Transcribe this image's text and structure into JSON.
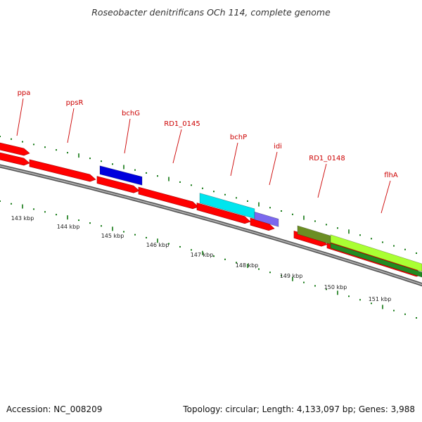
{
  "header": {
    "title": "Roseobacter denitrificans OCh 114, complete genome"
  },
  "footer": {
    "accession": "Accession: NC_008209",
    "summary": "Topology: circular; Length: 4,133,097 bp; Genes: 3,988"
  },
  "colors": {
    "cds": "#ff0000",
    "label": "#cc0000",
    "backbone": "#777777",
    "ticks": "#117711",
    "bchG": "#0000dd",
    "bchP": "#00e5ee",
    "idi": "#7b68ee",
    "RD1_0148": "#6b8e23",
    "flhA_light": "#aaff33",
    "flhA_dark": "#228b22"
  },
  "genome_map": {
    "gene_labels": [
      {
        "name": "ppa"
      },
      {
        "name": "ppsR"
      },
      {
        "name": "bchG"
      },
      {
        "name": "RD1_0145"
      },
      {
        "name": "bchP"
      },
      {
        "name": "idi"
      },
      {
        "name": "RD1_0148"
      },
      {
        "name": "flhA"
      }
    ],
    "kbp_labels": [
      "143 kbp",
      "144 kbp",
      "145 kbp",
      "146 kbp",
      "147 kbp",
      "148 kbp",
      "149 kbp",
      "150 kbp",
      "151 kbp"
    ]
  }
}
